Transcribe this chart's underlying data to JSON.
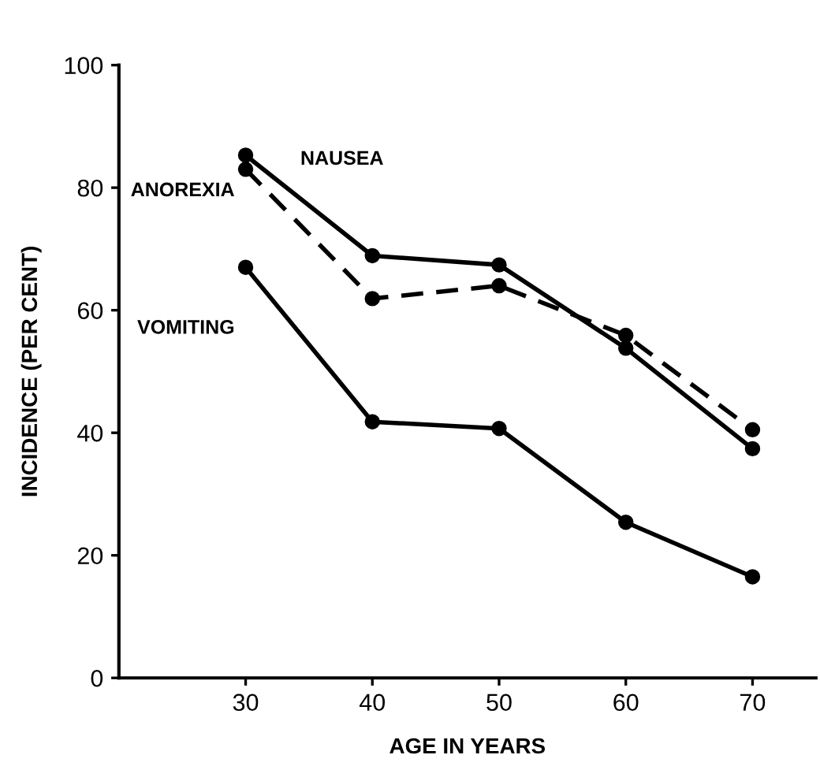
{
  "chart_data": {
    "type": "line",
    "xlabel": "AGE IN YEARS",
    "ylabel": "INCIDENCE (PER CENT)",
    "x": [
      30,
      40,
      50,
      60,
      70
    ],
    "xlim": [
      20,
      75
    ],
    "xticks": [
      30,
      40,
      50,
      60,
      70
    ],
    "ylim": [
      0,
      100
    ],
    "yticks": [
      0,
      20,
      40,
      60,
      80,
      100
    ],
    "grid": false,
    "legend": false,
    "marker": "circle",
    "series": [
      {
        "name": "NAUSEA",
        "color": "#000000",
        "line_style": "solid",
        "values": [
          85.3,
          68.9,
          67.4,
          53.8,
          37.4
        ]
      },
      {
        "name": "ANOREXIA",
        "color": "#000000",
        "line_style": "dashed",
        "values": [
          83,
          61.9,
          64,
          55.9,
          40.5
        ]
      },
      {
        "name": "VOMITING",
        "color": "#000000",
        "line_style": "solid",
        "values": [
          67,
          41.8,
          40.7,
          25.4,
          16.5
        ]
      }
    ]
  }
}
